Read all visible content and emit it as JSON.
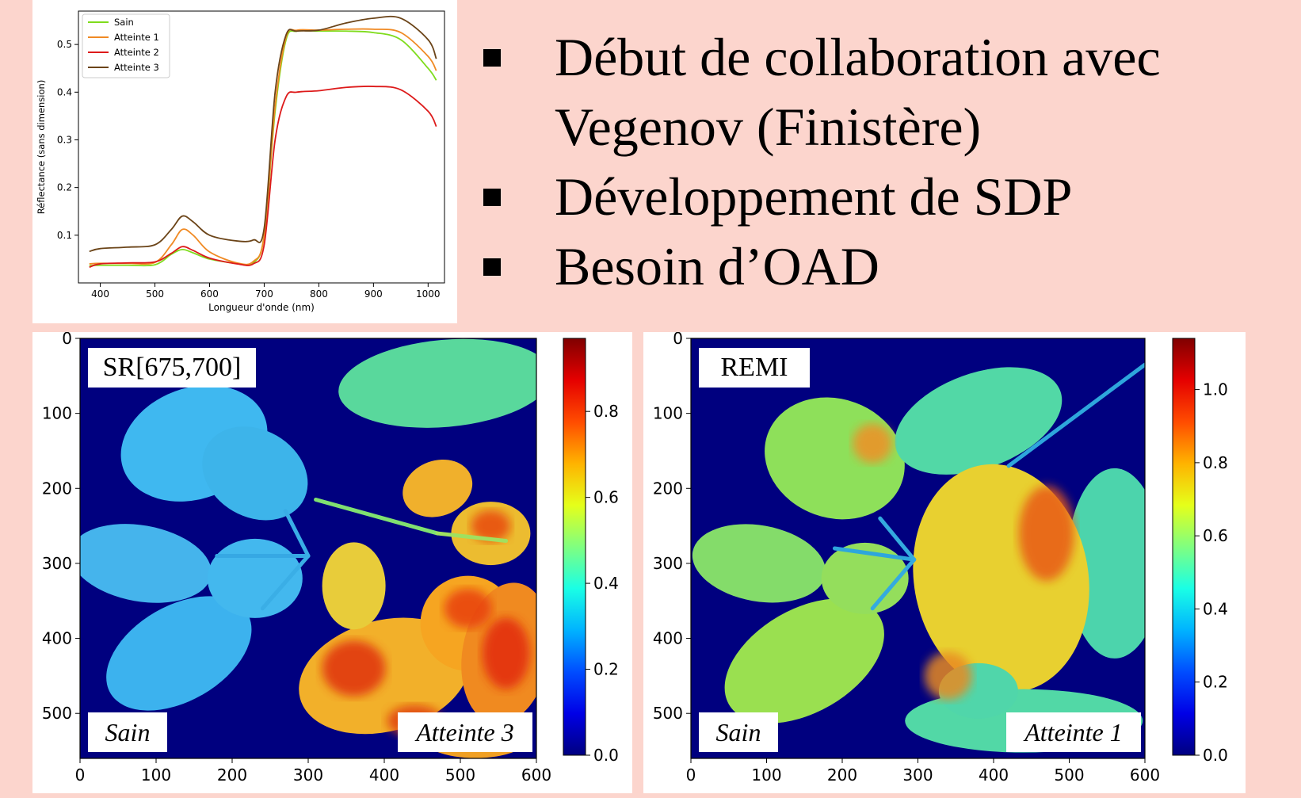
{
  "bullets": [
    {
      "line1": "Début de collaboration avec",
      "line2": "Vegenov (Finistère)"
    },
    {
      "line1": "Développement de SDP"
    },
    {
      "line1": "Besoin d’OAD"
    }
  ],
  "colors": {
    "Sain": "#7fdc1c",
    "Atteinte 1": "#f08a24",
    "Atteinte 2": "#dd1a1a",
    "Atteinte 3": "#6b4418",
    "map_background": "#00007f"
  },
  "chart_data": [
    {
      "type": "line",
      "title": "",
      "xlabel": "Longueur d'onde (nm)",
      "ylabel": "Réflectance (sans dimension)",
      "xlim": [
        360,
        1030
      ],
      "ylim": [
        0.0,
        0.57
      ],
      "xticks": [
        400,
        500,
        600,
        700,
        800,
        900,
        1000
      ],
      "yticks": [
        0.1,
        0.2,
        0.3,
        0.4,
        0.5
      ],
      "ytick_labels": [
        "0.1",
        "0.2",
        "0.3",
        "0.4",
        "0.5"
      ],
      "legend_position": "top-left",
      "grid": false,
      "x": [
        380,
        400,
        450,
        500,
        530,
        550,
        570,
        600,
        650,
        680,
        700,
        720,
        740,
        760,
        800,
        850,
        900,
        950,
        1000,
        1015
      ],
      "series": [
        {
          "name": "Sain",
          "values": [
            0.036,
            0.037,
            0.037,
            0.038,
            0.06,
            0.07,
            0.063,
            0.05,
            0.041,
            0.042,
            0.1,
            0.36,
            0.51,
            0.528,
            0.528,
            0.528,
            0.525,
            0.51,
            0.45,
            0.425
          ]
        },
        {
          "name": "Atteinte 1",
          "values": [
            0.04,
            0.041,
            0.041,
            0.043,
            0.08,
            0.112,
            0.1,
            0.065,
            0.042,
            0.045,
            0.1,
            0.37,
            0.515,
            0.53,
            0.53,
            0.532,
            0.532,
            0.525,
            0.475,
            0.445
          ]
        },
        {
          "name": "Atteinte 2",
          "values": [
            0.033,
            0.04,
            0.042,
            0.044,
            0.062,
            0.076,
            0.068,
            0.052,
            0.04,
            0.04,
            0.08,
            0.3,
            0.39,
            0.4,
            0.403,
            0.41,
            0.412,
            0.405,
            0.36,
            0.328
          ]
        },
        {
          "name": "Atteinte 3",
          "values": [
            0.066,
            0.072,
            0.075,
            0.08,
            0.112,
            0.14,
            0.128,
            0.1,
            0.088,
            0.09,
            0.115,
            0.4,
            0.52,
            0.528,
            0.53,
            0.545,
            0.555,
            0.555,
            0.51,
            0.47
          ]
        }
      ]
    },
    {
      "type": "heatmap",
      "label_box": "SR[675,700]",
      "left_annotation": "Sain",
      "right_annotation": "Atteinte 3",
      "xlim": [
        0,
        600
      ],
      "ylim": [
        560,
        0
      ],
      "xticks": [
        0,
        100,
        200,
        300,
        400,
        500,
        600
      ],
      "yticks": [
        0,
        100,
        200,
        300,
        400,
        500
      ],
      "colorbar_range": [
        0.0,
        0.97
      ],
      "colorbar_ticks": [
        0.0,
        0.2,
        0.4,
        0.6,
        0.8
      ],
      "colorbar_tick_labels": [
        "0.0",
        "0.2",
        "0.4",
        "0.6",
        "0.8"
      ]
    },
    {
      "type": "heatmap",
      "label_box": "REMI",
      "left_annotation": "Sain",
      "right_annotation": "Atteinte 1",
      "xlim": [
        0,
        600
      ],
      "ylim": [
        560,
        0
      ],
      "xticks": [
        0,
        100,
        200,
        300,
        400,
        500,
        600
      ],
      "yticks": [
        0,
        100,
        200,
        300,
        400,
        500
      ],
      "colorbar_range": [
        0.0,
        1.14
      ],
      "colorbar_ticks": [
        0.0,
        0.2,
        0.4,
        0.6,
        0.8,
        1.0
      ],
      "colorbar_tick_labels": [
        "0.0",
        "0.2",
        "0.4",
        "0.6",
        "0.8",
        "1.0"
      ]
    }
  ]
}
